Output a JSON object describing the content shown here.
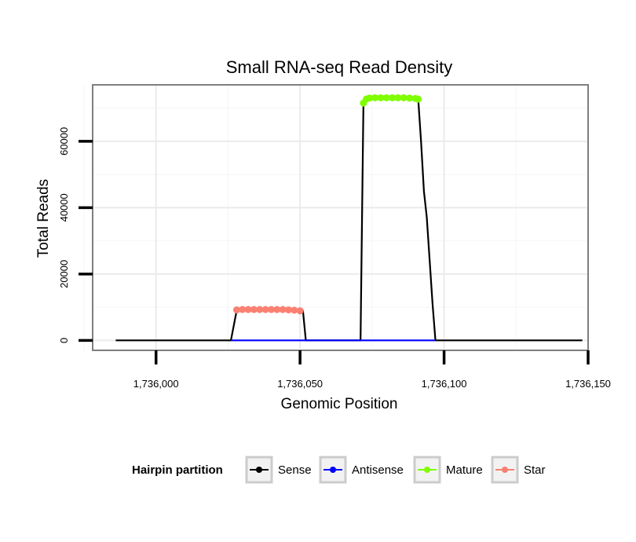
{
  "chart_data": {
    "type": "line",
    "title": "Small RNA-seq Read Density",
    "xlabel": "Genomic Position",
    "ylabel": "Total Reads",
    "xlim": [
      1735978,
      1736150
    ],
    "ylim": [
      -3000,
      77000
    ],
    "x_ticks": [
      1736000,
      1736050,
      1736100,
      1736150
    ],
    "x_tick_labels": [
      "1,736,000",
      "1,736,050",
      "1,736,100",
      "1,736,150"
    ],
    "y_ticks": [
      0,
      20000,
      40000,
      60000
    ],
    "y_tick_labels": [
      "0",
      "20000",
      "40000",
      "60000"
    ],
    "grid": true,
    "legend": {
      "title": "Hairpin partition",
      "position": "bottom",
      "entries": [
        {
          "label": "Sense",
          "color": "#000000"
        },
        {
          "label": "Antisense",
          "color": "#0000ff"
        },
        {
          "label": "Mature",
          "color": "#7fff00"
        },
        {
          "label": "Star",
          "color": "#fa8072"
        }
      ]
    },
    "series": [
      {
        "name": "Sense",
        "color": "#000000",
        "x": [
          1735986,
          1736026,
          1736027,
          1736028,
          1736051,
          1736052,
          1736071,
          1736072,
          1736074,
          1736091,
          1736092,
          1736093,
          1736094,
          1736096,
          1736097,
          1736148
        ],
        "y": [
          0,
          0,
          4500,
          9000,
          9000,
          0,
          0,
          71000,
          73000,
          73000,
          60000,
          45000,
          37000,
          11000,
          0,
          0
        ]
      },
      {
        "name": "Antisense",
        "color": "#0000ff",
        "x": [
          1736026,
          1736097
        ],
        "y": [
          0,
          0
        ]
      },
      {
        "name": "Mature",
        "color": "#7fff00",
        "x": [
          1736072,
          1736073,
          1736074,
          1736076,
          1736078,
          1736080,
          1736082,
          1736084,
          1736086,
          1736088,
          1736090,
          1736091
        ],
        "y": [
          71500,
          72700,
          73000,
          73100,
          73100,
          73100,
          73100,
          73100,
          73100,
          73000,
          72900,
          72700
        ]
      },
      {
        "name": "Star",
        "color": "#fa8072",
        "x": [
          1736028,
          1736030,
          1736032,
          1736034,
          1736036,
          1736038,
          1736040,
          1736042,
          1736044,
          1736046,
          1736048,
          1736050
        ],
        "y": [
          9200,
          9300,
          9300,
          9300,
          9300,
          9300,
          9300,
          9300,
          9300,
          9200,
          9100,
          8900
        ]
      }
    ]
  }
}
